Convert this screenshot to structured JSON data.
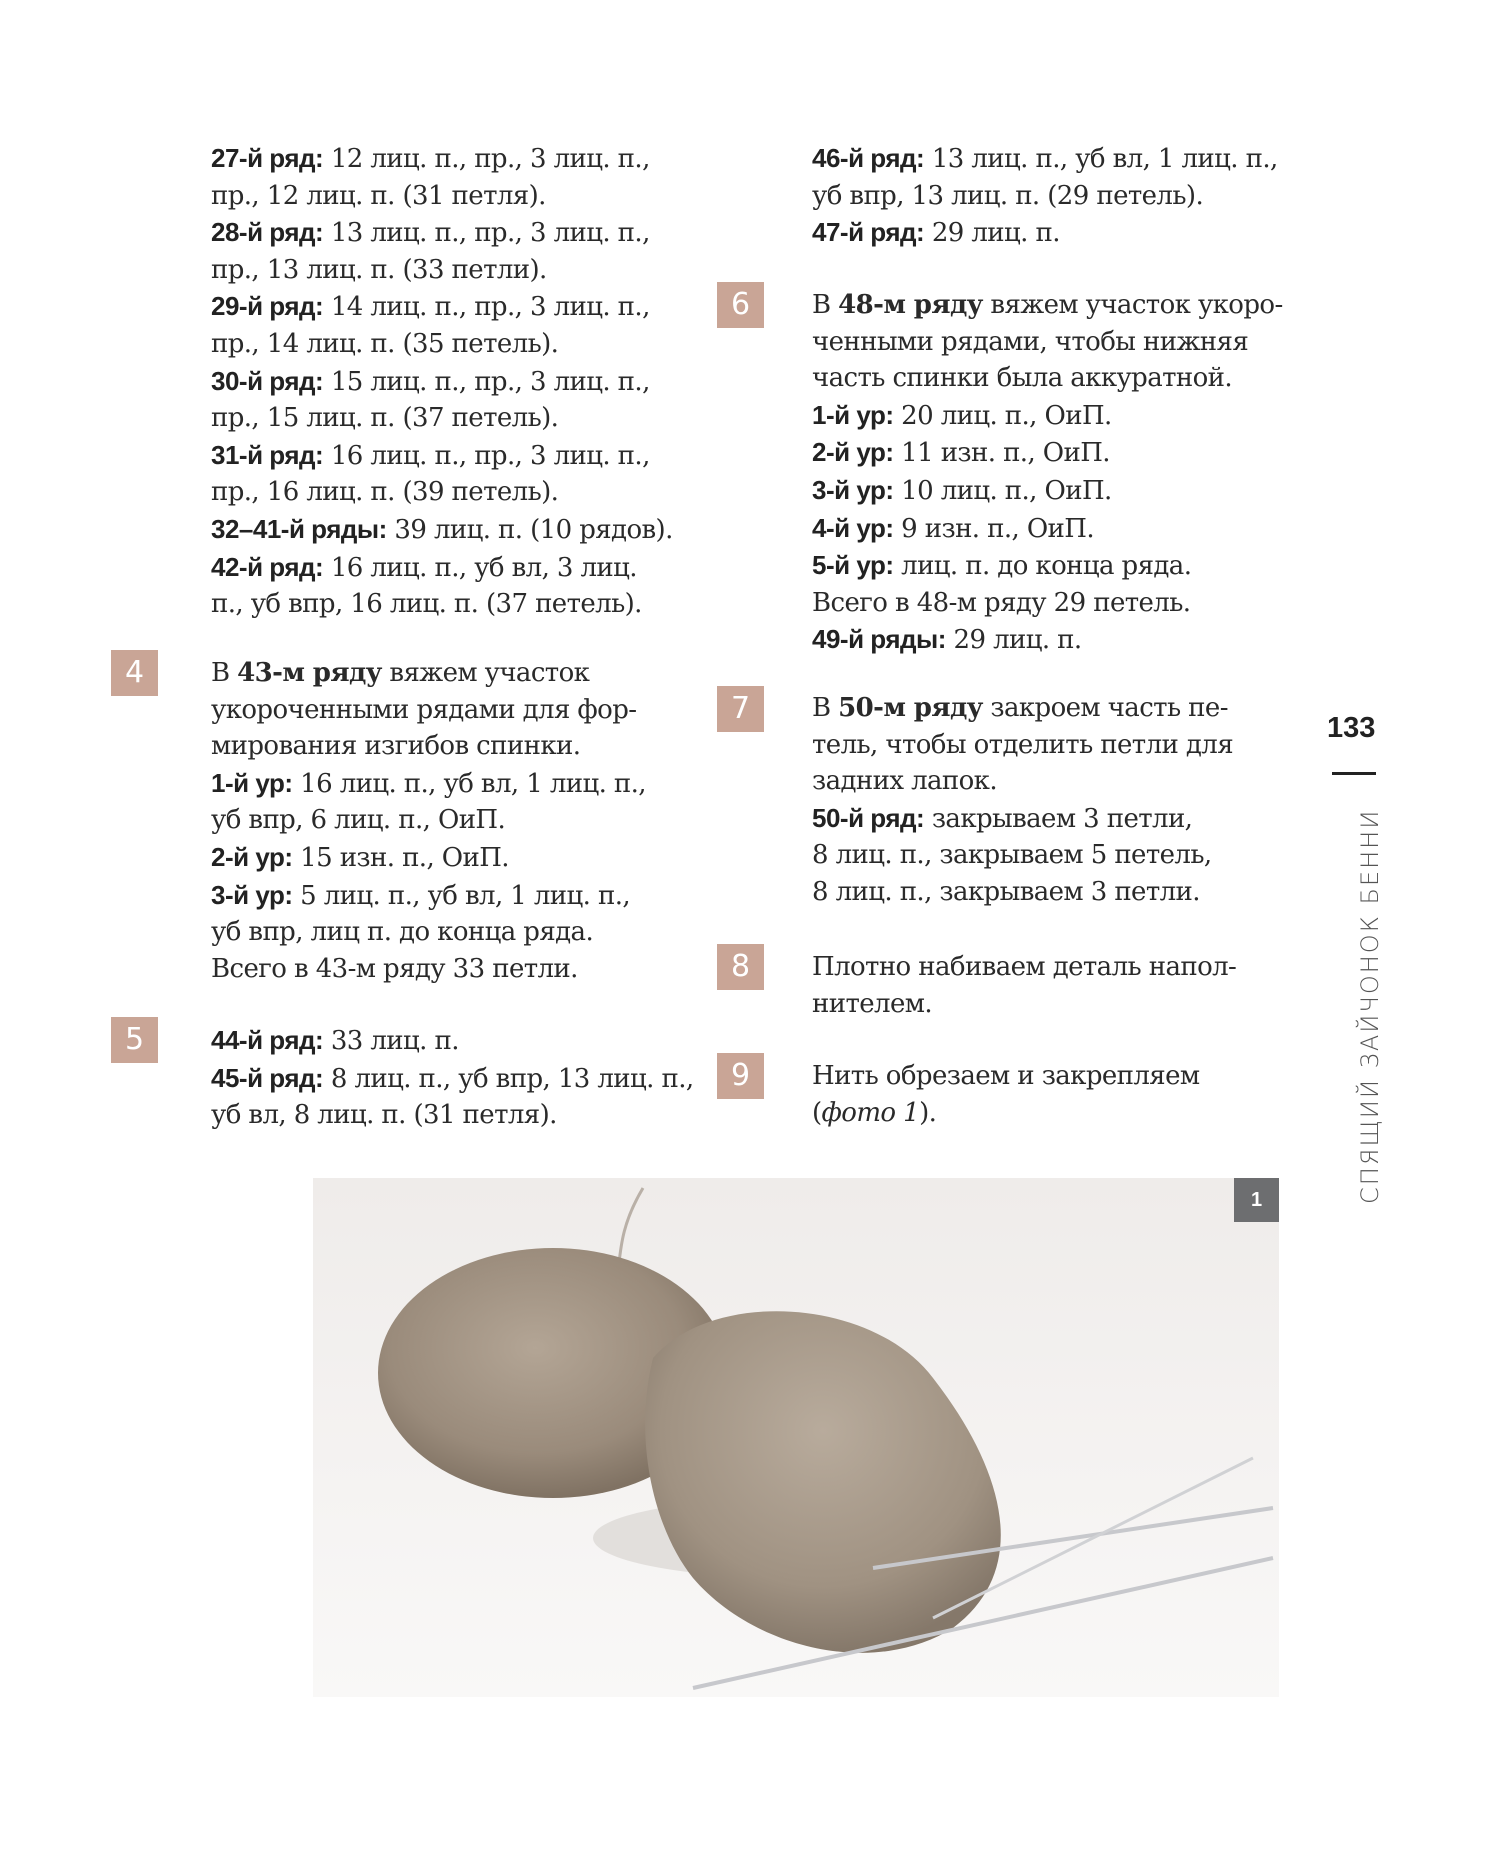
{
  "left_column": {
    "rows_intro": [
      {
        "label": "27-й ряд:",
        "lines": [
          " 12 лиц. п., пр., 3 лиц. п.,",
          "пр., 12 лиц. п. (31 петля)."
        ]
      },
      {
        "label": "28-й ряд:",
        "lines": [
          " 13 лиц. п., пр., 3 лиц. п.,",
          "пр., 13 лиц. п. (33 петли)."
        ]
      },
      {
        "label": "29-й ряд:",
        "lines": [
          " 14 лиц. п., пр., 3 лиц. п.,",
          "пр., 14 лиц. п. (35 петель)."
        ]
      },
      {
        "label": "30-й ряд:",
        "lines": [
          " 15 лиц. п., пр., 3 лиц. п.,",
          "пр., 15 лиц. п. (37 петель)."
        ]
      },
      {
        "label": "31-й ряд:",
        "lines": [
          " 16 лиц. п., пр., 3 лиц. п.,",
          "пр., 16 лиц. п. (39 петель)."
        ]
      },
      {
        "label": "32–41-й ряды:",
        "lines": [
          " 39 лиц. п. (10 рядов)."
        ]
      },
      {
        "label": "42-й ряд:",
        "lines": [
          " 16 лиц. п., уб вл, 3 лиц.",
          "п., уб впр, 16 лиц. п. (37 петель)."
        ]
      }
    ],
    "step4": {
      "number": "4",
      "intro_pre": "В ",
      "intro_bold": "43-м ряду",
      "intro_post": " вяжем участок",
      "intro_lines": [
        "укороченными рядами для фор-",
        "мирования изгибов спинки."
      ],
      "r1_label": "1-й ур:",
      "r1_lines": [
        " 16 лиц. п., уб вл, 1 лиц. п.,",
        "уб впр, 6 лиц. п., ОиП."
      ],
      "r2_label": "2-й ур:",
      "r2_text": " 15 изн. п., ОиП.",
      "r3_label": "3-й ур:",
      "r3_lines": [
        " 5 лиц. п., уб вл, 1 лиц. п.,",
        "уб впр, лиц п. до конца ряда."
      ],
      "total": "Всего в 43-м ряду 33 петли."
    },
    "step5": {
      "number": "5",
      "r44_label": "44-й ряд:",
      "r44_text": " 33 лиц. п.",
      "r45_label": "45-й ряд:",
      "r45_lines": [
        " 8 лиц. п., уб впр, 13 лиц. п.,",
        "уб вл, 8 лиц. п. (31 петля)."
      ]
    }
  },
  "right_column": {
    "r46_label": "46-й ряд:",
    "r46_lines": [
      " 13 лиц. п., уб вл, 1 лиц. п.,",
      "уб впр, 13 лиц. п. (29 петель)."
    ],
    "r47_label": "47-й ряд:",
    "r47_text": " 29 лиц. п.",
    "step6": {
      "number": "6",
      "intro_pre": "В ",
      "intro_bold": "48-м ряду",
      "intro_post": " вяжем участок укоро-",
      "intro_lines": [
        "ченными рядами, чтобы нижняя",
        "часть спинки была аккуратной."
      ],
      "rows": [
        {
          "label": "1-й ур:",
          "text": " 20 лиц. п., ОиП."
        },
        {
          "label": "2-й ур:",
          "text": " 11 изн. п., ОиП."
        },
        {
          "label": "3-й ур:",
          "text": " 10 лиц. п., ОиП."
        },
        {
          "label": "4-й ур:",
          "text": " 9 изн. п., ОиП."
        },
        {
          "label": "5-й ур:",
          "text": " лиц. п. до конца ряда."
        }
      ],
      "total": "Всего в 48-м ряду 29 петель.",
      "r49_label": "49-й ряды:",
      "r49_text": " 29 лиц. п."
    },
    "step7": {
      "number": "7",
      "intro_pre": "В ",
      "intro_bold": "50-м ряду",
      "intro_post": " закроем часть пе-",
      "intro_lines": [
        "тель, чтобы отделить петли для",
        "задних лапок."
      ],
      "r50_label": "50-й ряд:",
      "r50_lines": [
        " закрываем 3 петли,",
        "8 лиц. п., закрываем 5 петель,",
        "8 лиц. п., закрываем 3 петли."
      ]
    },
    "step8": {
      "number": "8",
      "lines": [
        "Плотно набиваем деталь напол-",
        "нителем."
      ]
    },
    "step9": {
      "number": "9",
      "line1": "Нить обрезаем и закрепляем",
      "paren_open": "(",
      "italic": "фото 1",
      "paren_close": ")."
    }
  },
  "page_number": "133",
  "running_head": "СПЯЩИЙ ЗАЙЧОНОК БЕННИ",
  "photo": {
    "badge": "1",
    "badge_color": "#6d6e70"
  },
  "colors": {
    "step_badge": "#c9a596",
    "text": "#2a2a2a"
  }
}
